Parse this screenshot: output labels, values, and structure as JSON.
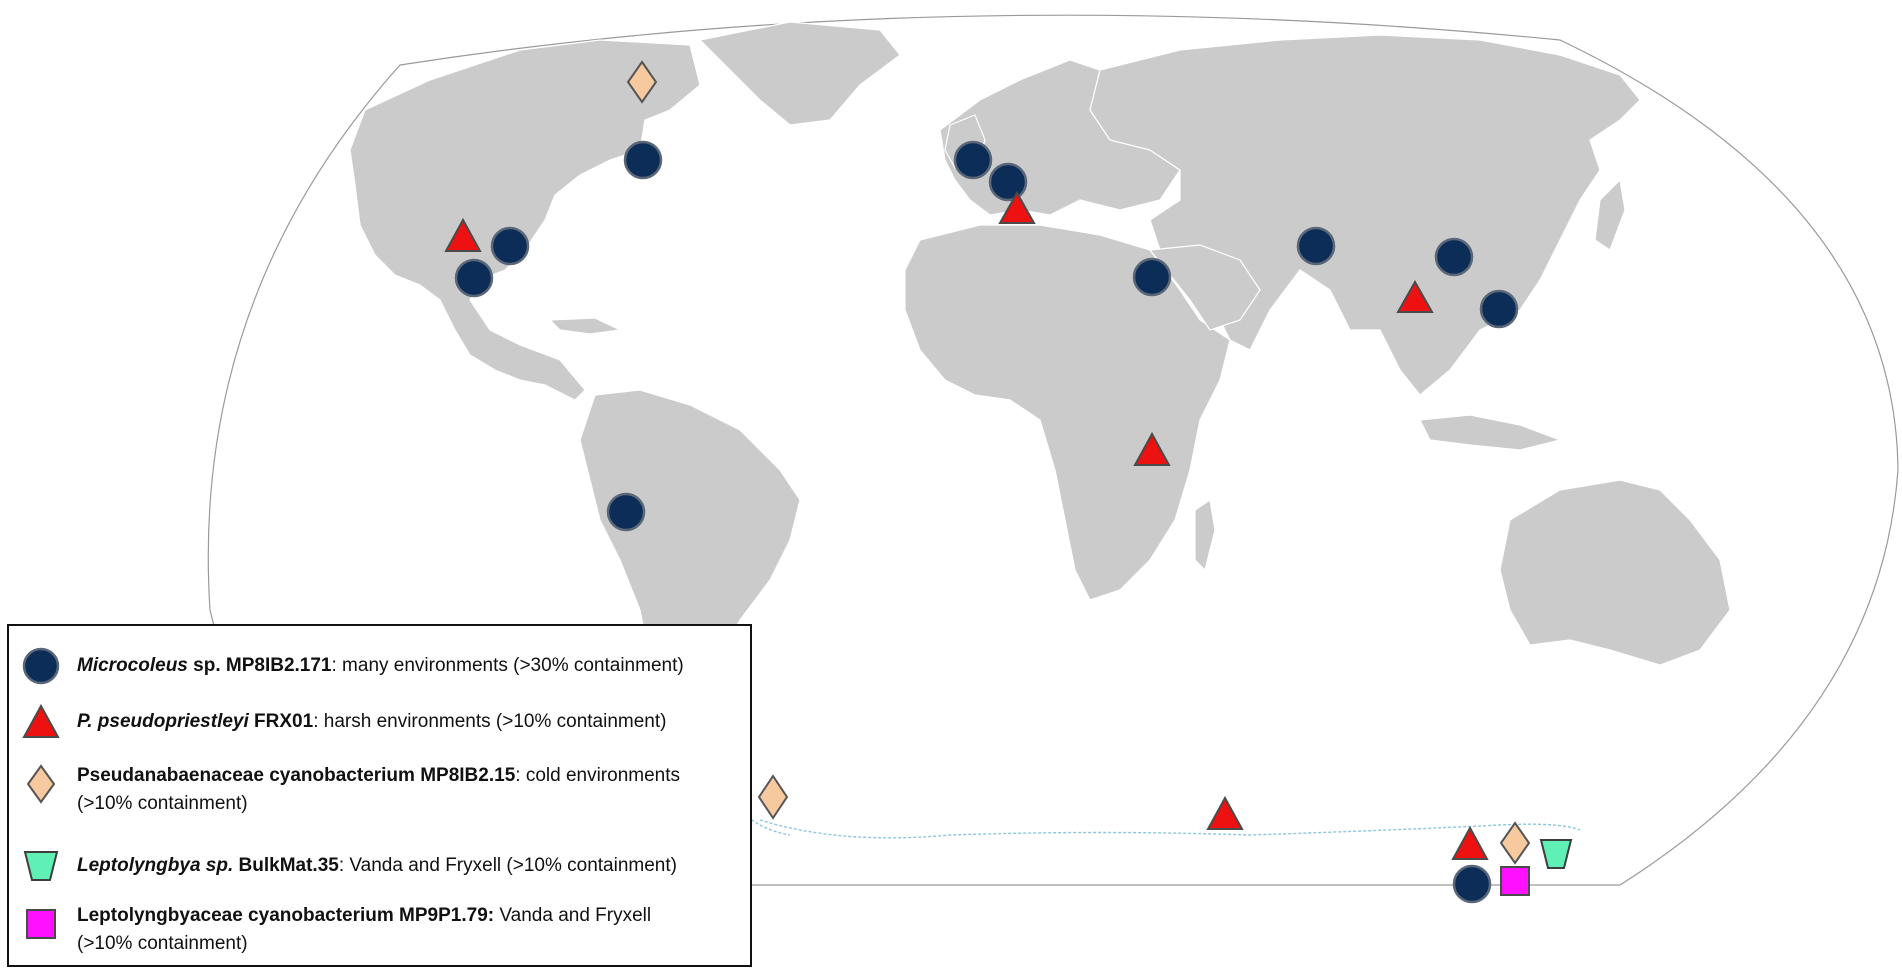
{
  "map": {
    "projection": "world (Robinson-like), Pacific-split",
    "colors": {
      "land": "#cbcbcb",
      "ocean": "#ffffff",
      "antarctic_coast": "#8cc6dd"
    },
    "markers": [
      {
        "type": "circle",
        "taxon": "microcoleus",
        "location": "Great Lakes, North America"
      },
      {
        "type": "circle",
        "taxon": "microcoleus",
        "location": "Great Basin, North America"
      },
      {
        "type": "circle",
        "taxon": "microcoleus",
        "location": "Southern California"
      },
      {
        "type": "circle",
        "taxon": "microcoleus",
        "location": "British Isles"
      },
      {
        "type": "circle",
        "taxon": "microcoleus",
        "location": "Central Europe"
      },
      {
        "type": "circle",
        "taxon": "microcoleus",
        "location": "Levant"
      },
      {
        "type": "circle",
        "taxon": "microcoleus",
        "location": "Central Asia"
      },
      {
        "type": "circle",
        "taxon": "microcoleus",
        "location": "Central China"
      },
      {
        "type": "circle",
        "taxon": "microcoleus",
        "location": "Southern China"
      },
      {
        "type": "circle",
        "taxon": "microcoleus",
        "location": "Peru"
      },
      {
        "type": "circle",
        "taxon": "microcoleus",
        "location": "Antarctica (Victoria Land)"
      },
      {
        "type": "triangle",
        "taxon": "pseudopriestleyi",
        "location": "California"
      },
      {
        "type": "triangle",
        "taxon": "pseudopriestleyi",
        "location": "Southern France"
      },
      {
        "type": "triangle",
        "taxon": "pseudopriestleyi",
        "location": "Himalaya"
      },
      {
        "type": "triangle",
        "taxon": "pseudopriestleyi",
        "location": "East Africa"
      },
      {
        "type": "triangle",
        "taxon": "pseudopriestleyi",
        "location": "Antarctica (East)"
      },
      {
        "type": "triangle",
        "taxon": "pseudopriestleyi",
        "location": "Antarctica (Victoria Land)"
      },
      {
        "type": "diamond",
        "taxon": "pseudanabaenaceae",
        "location": "Canadian Arctic"
      },
      {
        "type": "diamond",
        "taxon": "pseudanabaenaceae",
        "location": "Antarctic Peninsula"
      },
      {
        "type": "diamond",
        "taxon": "pseudanabaenaceae",
        "location": "Antarctica (Victoria Land)"
      },
      {
        "type": "trapezoid",
        "taxon": "leptolyngbya",
        "location": "Antarctica (Victoria Land)"
      },
      {
        "type": "square",
        "taxon": "leptolyngbyaceae",
        "location": "Antarctica (Victoria Land)"
      }
    ]
  },
  "legend": {
    "items": [
      {
        "symbol": "circle",
        "color": "#0c2d57",
        "name_italic": "Microcoleus",
        "name_bold": " sp. MP8IB2.171",
        "desc": ": many environments (>30% containment)",
        "desc2": ""
      },
      {
        "symbol": "triangle",
        "color": "#ee1111",
        "name_italic": "P. pseudopriestleyi",
        "name_bold": " FRX01",
        "desc": ": harsh environments (>10% containment)",
        "desc2": ""
      },
      {
        "symbol": "diamond",
        "color": "#f7c99f",
        "name_italic": "",
        "name_bold": "Pseudanabaenaceae cyanobacterium MP8IB2.15",
        "desc": ": cold environments",
        "desc2": "(>10% containment)"
      },
      {
        "symbol": "trapezoid",
        "color": "#5ef0b4",
        "name_italic": "Leptolyngbya sp.",
        "name_bold": " BulkMat.35",
        "desc": ": Vanda and Fryxell (>10% containment)",
        "desc2": ""
      },
      {
        "symbol": "square",
        "color": "#ff10ff",
        "name_italic": "",
        "name_bold": "Leptolyngbyaceae cyanobacterium MP9P1.79:",
        "desc": " Vanda and Fryxell",
        "desc2": "(>10% containment)"
      }
    ]
  }
}
